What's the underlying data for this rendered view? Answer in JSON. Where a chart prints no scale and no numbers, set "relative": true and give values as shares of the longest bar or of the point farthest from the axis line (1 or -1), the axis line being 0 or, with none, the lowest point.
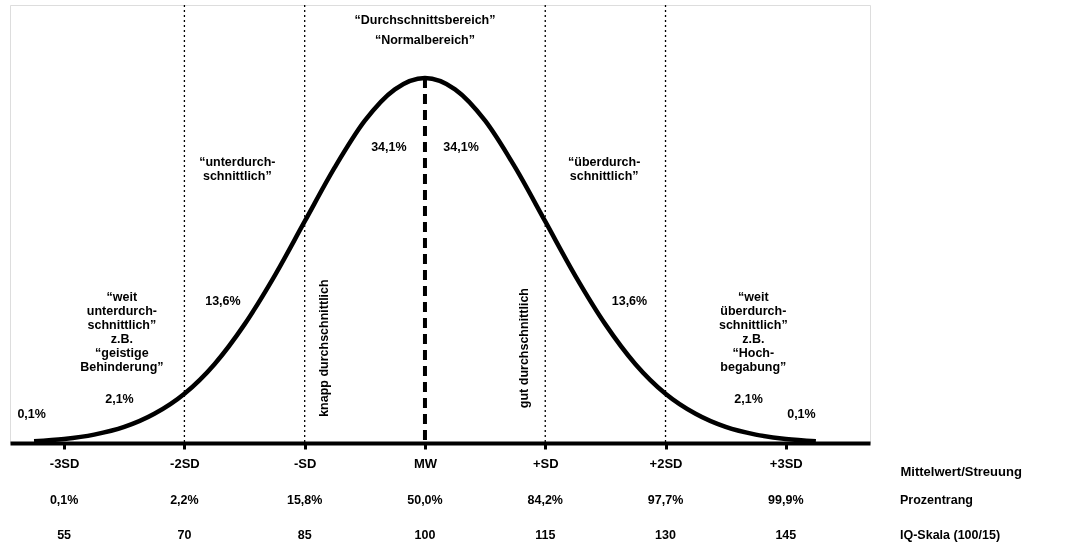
{
  "chart_data": {
    "type": "line",
    "relative": true,
    "x": [
      -3.25,
      -3,
      -2.75,
      -2.5,
      -2.25,
      -2,
      -1.75,
      -1.5,
      -1.25,
      -1,
      -0.75,
      -0.5,
      -0.25,
      0,
      0.25,
      0.5,
      0.75,
      1,
      1.25,
      1.5,
      1.75,
      2,
      2.25,
      2.5,
      2.75,
      3,
      3.25
    ],
    "series": [
      {
        "color": "#000000",
        "values": [
          0.005,
          0.011,
          0.023,
          0.044,
          0.08,
          0.135,
          0.216,
          0.325,
          0.458,
          0.607,
          0.755,
          0.883,
          0.969,
          1,
          0.969,
          0.883,
          0.755,
          0.607,
          0.458,
          0.325,
          0.216,
          0.135,
          0.08,
          0.044,
          0.023,
          0.011,
          0.005
        ]
      }
    ],
    "xlim": [
      -3.45,
      3.7
    ],
    "xticks": [
      {
        "value": -3,
        "label": "-3SD"
      },
      {
        "value": -2,
        "label": "-2SD"
      },
      {
        "value": -1,
        "label": "-SD"
      },
      {
        "value": 0,
        "label": "MW"
      },
      {
        "value": 1,
        "label": "+SD"
      },
      {
        "value": 2,
        "label": "+2SD"
      },
      {
        "value": 3,
        "label": "+3SD"
      }
    ],
    "xlabel": "Mittelwert/Streuung",
    "ref_lines": [
      {
        "axis": "x",
        "value": -2,
        "line_style": "dotted"
      },
      {
        "axis": "x",
        "value": -1,
        "line_style": "dotted"
      },
      {
        "axis": "x",
        "value": 0,
        "line_style": "dashed"
      },
      {
        "axis": "x",
        "value": 1,
        "line_style": "dotted"
      },
      {
        "axis": "x",
        "value": 2,
        "line_style": "dotted"
      }
    ],
    "annotations": [
      "“Durchschnittsbereich”",
      "“Normalbereich”",
      "34,1%",
      "34,1%",
      "“unterdurch-\nschnittlich”",
      "“überdurch-\nschnittlich”",
      "“weit\nunterdurch-\nschnittlich”\nz.B.\n“geistige\nBehinderung”",
      "“weit\nüberdurch-\nschnittlich”\nz.B.\n“Hoch-\nbegabung”",
      "13,6%",
      "13,6%",
      "2,1%",
      "2,1%",
      "0,1%",
      "0,1%",
      "knapp durchschnittlich",
      "gut durchschnittlich",
      "0,1%",
      "2,2%",
      "15,8%",
      "50,0%",
      "84,2%",
      "97,7%",
      "99,9%",
      "Prozentrang",
      "55",
      "70",
      "85",
      "100",
      "115",
      "130",
      "145",
      "IQ-Skala (100/15)"
    ],
    "grid": false,
    "marker": "none",
    "line_style": "solid"
  }
}
